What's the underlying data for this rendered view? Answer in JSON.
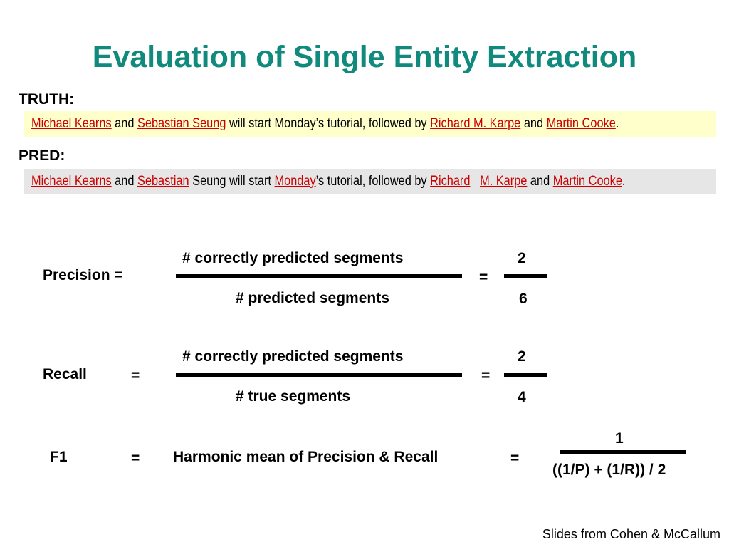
{
  "title": "Evaluation of Single Entity Extraction",
  "truth": {
    "label": "TRUTH:",
    "parts": [
      {
        "text": "Michael Kearns",
        "entity": true
      },
      {
        "text": " and ",
        "entity": false
      },
      {
        "text": "Sebastian Seung",
        "entity": true
      },
      {
        "text": " will start Monday’s tutorial, followed by ",
        "entity": false
      },
      {
        "text": "Richard M. Karpe",
        "entity": true
      },
      {
        "text": " and ",
        "entity": false
      },
      {
        "text": "Martin Cooke",
        "entity": true
      },
      {
        "text": ".",
        "entity": false
      }
    ]
  },
  "pred": {
    "label": "PRED:",
    "parts": [
      {
        "text": "Michael Kearns",
        "entity": true
      },
      {
        "text": " and ",
        "entity": false
      },
      {
        "text": "Sebastian",
        "entity": true
      },
      {
        "text": " Seung will start ",
        "entity": false
      },
      {
        "text": "Monday",
        "entity": true
      },
      {
        "text": "’s tutorial, followed by ",
        "entity": false
      },
      {
        "text": "Richard",
        "entity": true
      },
      {
        "text": "   ",
        "entity": false
      },
      {
        "text": "M. Karpe",
        "entity": true
      },
      {
        "text": " and ",
        "entity": false
      },
      {
        "text": "Martin Cooke",
        "entity": true
      },
      {
        "text": ".",
        "entity": false
      }
    ]
  },
  "precision": {
    "label": "Precision =",
    "numerator": "# correctly predicted segments",
    "denominator": "# predicted segments",
    "equals": "=",
    "value_num": "2",
    "value_den": "6"
  },
  "recall": {
    "label": "Recall",
    "equals1": "=",
    "numerator": "# correctly predicted segments",
    "denominator": "# true segments",
    "equals2": "=",
    "value_num": "2",
    "value_den": "4"
  },
  "f1": {
    "label": "F1",
    "equals1": "=",
    "text": "Harmonic mean of Precision & Recall",
    "equals2": "=",
    "numerator": "1",
    "denominator": "((1/P) + (1/R)) / 2"
  },
  "credit": "Slides from Cohen & McCallum",
  "colors": {
    "title": "#0f8a7d",
    "entity": "#cc0000",
    "truth_bg": "#ffffcc",
    "pred_bg": "#e6e6e6"
  }
}
